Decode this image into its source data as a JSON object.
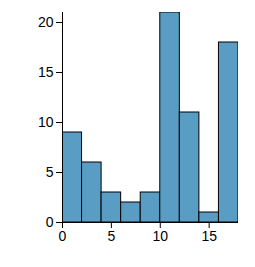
{
  "chart_data": {
    "type": "histogram",
    "bins": [
      0,
      2,
      4,
      6,
      8,
      10,
      12,
      14,
      16,
      18
    ],
    "values": [
      9,
      6,
      3,
      2,
      3,
      21,
      11,
      1,
      18
    ],
    "color": "#5a9dc4",
    "xlim": [
      0,
      18
    ],
    "xticks": [
      0,
      5,
      10,
      15
    ],
    "ylim": [
      0,
      21
    ],
    "yticks": [
      0,
      5,
      10,
      15,
      20
    ]
  }
}
